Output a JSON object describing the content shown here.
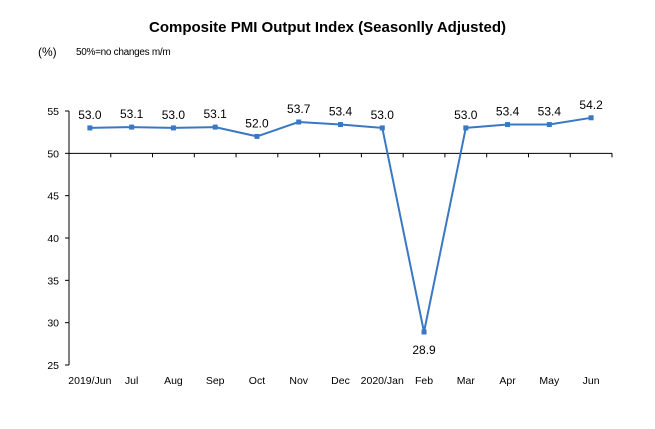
{
  "chart_data": {
    "type": "line",
    "title": "Composite PMI Output Index (Seasonlly Adjusted)",
    "unit_label": "(%)",
    "note": "50%=no changes  m/m",
    "categories": [
      "2019/Jun",
      "Jul",
      "Aug",
      "Sep",
      "Oct",
      "Nov",
      "Dec",
      "2020/Jan",
      "Feb",
      "Mar",
      "Apr",
      "May",
      "Jun"
    ],
    "series": [
      {
        "values": [
          53.0,
          53.1,
          53.0,
          53.1,
          52.0,
          53.7,
          53.4,
          53.0,
          28.9,
          53.0,
          53.4,
          53.4,
          54.2
        ]
      }
    ],
    "data_labels": [
      "53.0",
      "53.1",
      "53.0",
      "53.1",
      "52.0",
      "53.7",
      "53.4",
      "53.0",
      "28.9",
      "53.0",
      "53.4",
      "53.4",
      "54.2"
    ],
    "ylim": [
      25,
      55
    ],
    "yticks": [
      25,
      30,
      35,
      40,
      45,
      50,
      55
    ],
    "x_axis_crosses_at": 50,
    "grid": false,
    "legend": "none",
    "line_color": "#3A78C3"
  }
}
